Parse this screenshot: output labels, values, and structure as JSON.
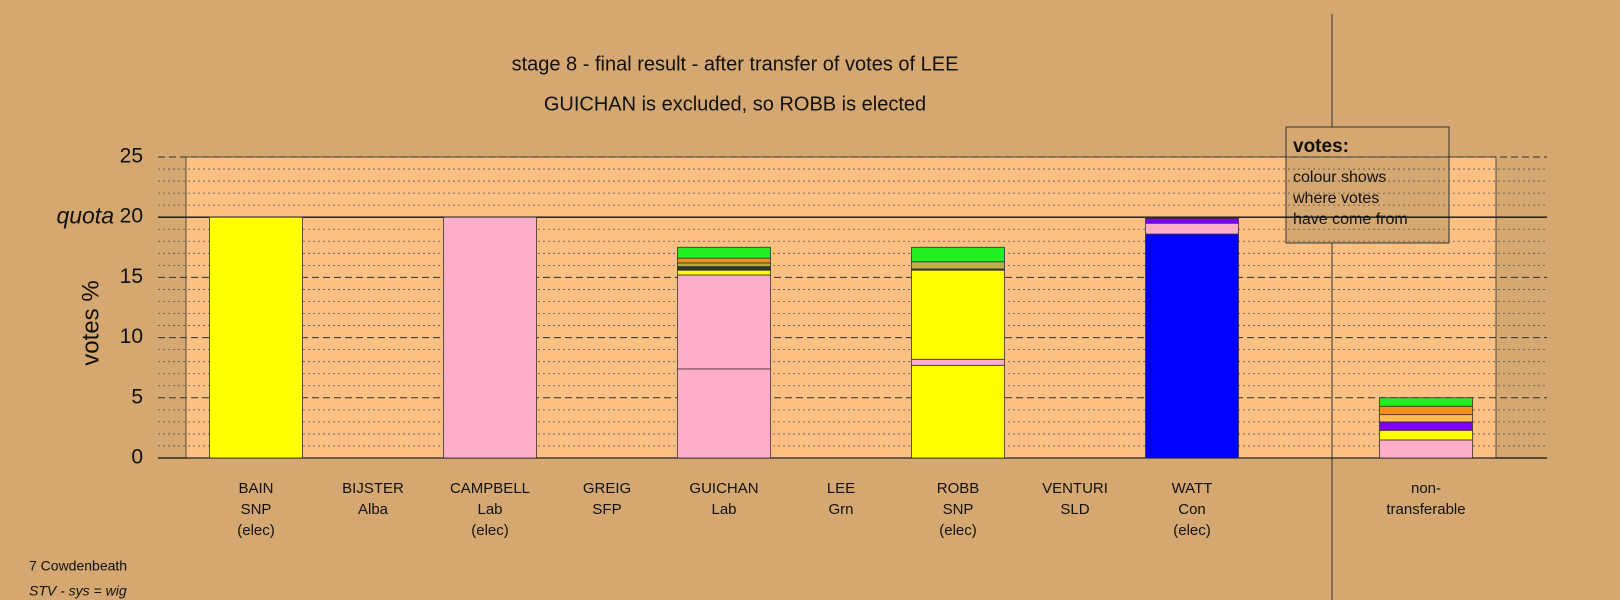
{
  "chart_data": {
    "type": "stacked-bar",
    "title": "stage 8 - final result - after transfer of votes of LEE",
    "subtitle": "GUICHAN is excluded, so ROBB is elected",
    "y_label": "votes %",
    "quota": {
      "value": 20,
      "label": "quota"
    },
    "ylim": [
      0,
      25
    ],
    "yticks": [
      0,
      5,
      10,
      15,
      20,
      25
    ],
    "minor_yticks": [
      1,
      2,
      3,
      4,
      6,
      7,
      8,
      9,
      11,
      12,
      13,
      14,
      16,
      17,
      18,
      19,
      21,
      22,
      23,
      24
    ],
    "grid": true,
    "categories": [
      [
        "BAIN",
        "SNP",
        "(elec)"
      ],
      [
        "BIJSTER",
        "Alba"
      ],
      [
        "CAMPBELL",
        "Lab",
        "(elec)"
      ],
      [
        "GREIG",
        "SFP"
      ],
      [
        "GUICHAN",
        "Lab"
      ],
      [
        "LEE",
        "Grn"
      ],
      [
        "ROBB",
        "SNP",
        "(elec)"
      ],
      [
        "VENTURI",
        "SLD"
      ],
      [
        "WATT",
        "Con",
        "(elec)"
      ],
      [
        "non-",
        "transferable"
      ]
    ],
    "segments": [
      [
        {
          "value": 20,
          "color": "#ffff00"
        }
      ],
      [],
      [
        {
          "value": 20,
          "color": "#ffaec9"
        }
      ],
      [],
      [
        {
          "value": 7.4,
          "color": "#ffaec9"
        },
        {
          "value": 7.8,
          "color": "#ffaec9"
        },
        {
          "value": 0.4,
          "color": "#ffff00"
        },
        {
          "value": 0.3,
          "color": "#333333"
        },
        {
          "value": 0.3,
          "color": "#b8b040"
        },
        {
          "value": 0.4,
          "color": "#f0901e"
        },
        {
          "value": 0.9,
          "color": "#22ee22"
        }
      ],
      [],
      [
        {
          "value": 7.7,
          "color": "#ffff00"
        },
        {
          "value": 0.5,
          "color": "#ffaec9"
        },
        {
          "value": 7.4,
          "color": "#ffff00"
        },
        {
          "value": 0.1,
          "color": "#333333"
        },
        {
          "value": 0.6,
          "color": "#b8b040"
        },
        {
          "value": 1.2,
          "color": "#22ee22"
        }
      ],
      [],
      [
        {
          "value": 18.6,
          "color": "#0000ff"
        },
        {
          "value": 0.9,
          "color": "#ffaec9"
        },
        {
          "value": 0.4,
          "color": "#8000ff"
        }
      ],
      [
        {
          "value": 1.5,
          "color": "#ffaec9"
        },
        {
          "value": 0.8,
          "color": "#ffff00"
        },
        {
          "value": 0.7,
          "color": "#8000ff"
        },
        {
          "value": 0.6,
          "color": "#ffbe55"
        },
        {
          "value": 0.7,
          "color": "#f0901e"
        },
        {
          "value": 0.7,
          "color": "#22ee22"
        }
      ]
    ],
    "legend": {
      "title": "votes:",
      "lines": [
        "colour shows",
        "where votes",
        "have come from"
      ]
    },
    "footer": [
      "7 Cowdenbeath",
      "STV - sys = wig"
    ]
  }
}
